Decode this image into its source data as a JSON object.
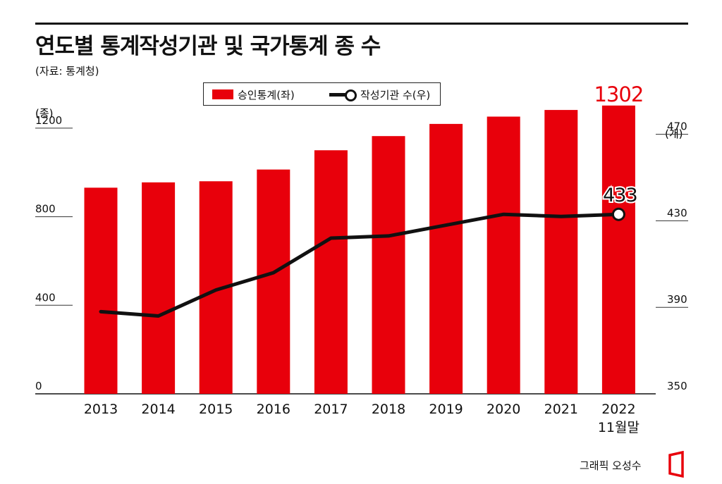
{
  "header": {
    "title": "연도별 통계작성기관 및 국가통계 종 수",
    "source": "(자료: 통계청)"
  },
  "legend": {
    "bar_label": "승인통계(좌)",
    "line_label": "작성기관 수(우)"
  },
  "credit": "그래픽 오성수",
  "colors": {
    "bar": "#e8000b",
    "line": "#111111",
    "highlight": "#e8000b",
    "logo": "#e8000b"
  },
  "chart_data": {
    "type": "bar",
    "title": "연도별 통계작성기관 및 국가통계 종 수",
    "categories": [
      "2013",
      "2014",
      "2015",
      "2016",
      "2017",
      "2018",
      "2019",
      "2020",
      "2021",
      "2022"
    ],
    "category_sublabels": [
      "",
      "",
      "",
      "",
      "",
      "",
      "",
      "",
      "",
      "11월말"
    ],
    "y_left_unit": "(종)",
    "y_right_unit": "(개)",
    "y_left_ticks": [
      "0",
      "400",
      "800",
      "1200"
    ],
    "y_right_ticks": [
      "350",
      "390",
      "430",
      "470"
    ],
    "ylim_left": [
      0,
      1260
    ],
    "ylim_right": [
      350,
      479
    ],
    "grid": false,
    "legend_position": "top-center",
    "series": [
      {
        "name": "승인통계(좌)",
        "type": "bar",
        "axis": "left",
        "values": [
          931,
          955,
          960,
          1013,
          1100,
          1164,
          1219,
          1252,
          1282,
          1302
        ]
      },
      {
        "name": "작성기관 수(우)",
        "type": "line",
        "axis": "right",
        "values": [
          388,
          386,
          398,
          406,
          422,
          423,
          428,
          433,
          432,
          433
        ]
      }
    ],
    "annotations": {
      "bar_last": "1302",
      "line_last": "433"
    }
  }
}
